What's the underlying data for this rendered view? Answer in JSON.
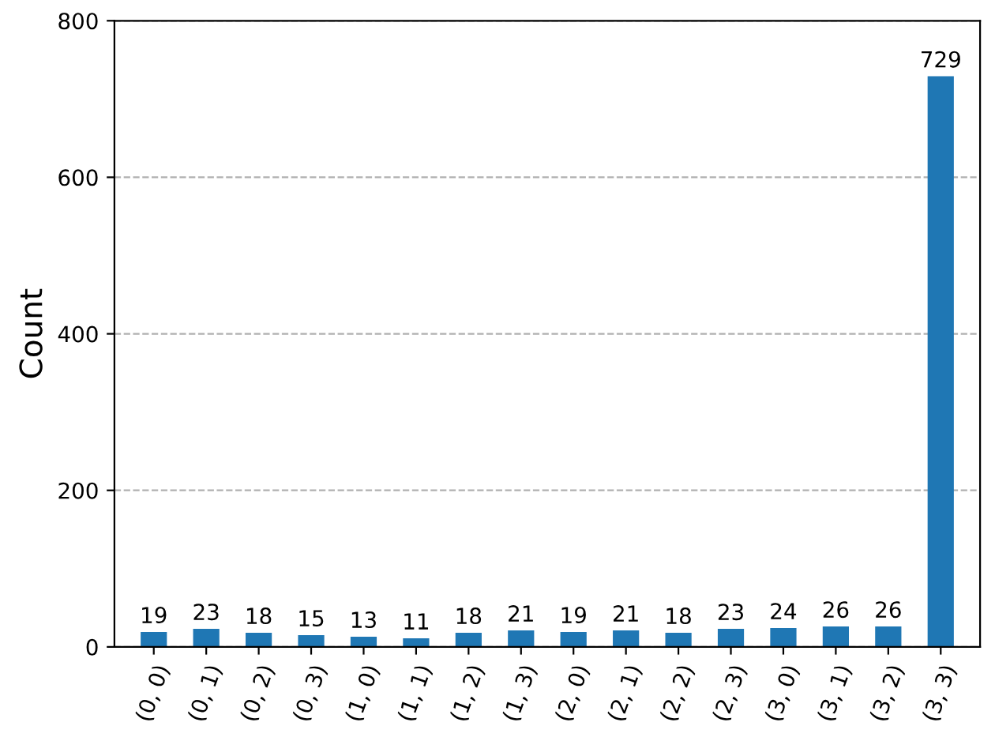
{
  "chart_data": {
    "type": "bar",
    "ylabel": "Count",
    "categories": [
      "(0, 0)",
      "(0, 1)",
      "(0, 2)",
      "(0, 3)",
      "(1, 0)",
      "(1, 1)",
      "(1, 2)",
      "(1, 3)",
      "(2, 0)",
      "(2, 1)",
      "(2, 2)",
      "(2, 3)",
      "(3, 0)",
      "(3, 1)",
      "(3, 2)",
      "(3, 3)"
    ],
    "values": [
      19,
      23,
      18,
      15,
      13,
      11,
      18,
      21,
      19,
      21,
      18,
      23,
      24,
      26,
      26,
      729
    ],
    "color": "#1f77b4",
    "ylim": [
      0,
      800
    ],
    "yticks": [
      0,
      200,
      400,
      600,
      800
    ],
    "grid": "y",
    "line_style": "dashed",
    "data_labels": true
  }
}
